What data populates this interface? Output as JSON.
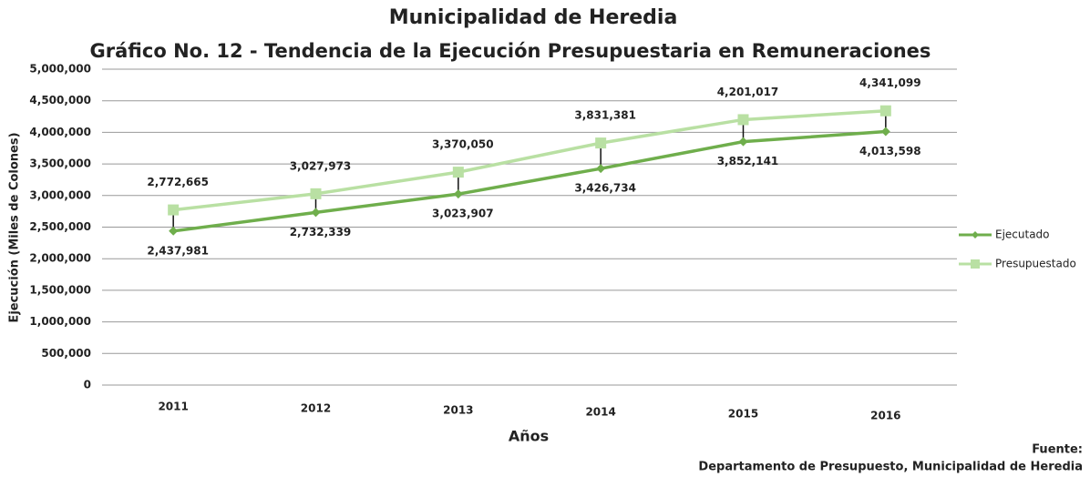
{
  "chart_data": {
    "type": "line",
    "title": "Municipalidad de Heredia",
    "subtitle": "Gráfico No. 12 - Tendencia de la Ejecución Presupuestaria en Remuneraciones",
    "x_label": "Años",
    "y_label": "Ejecución (Miles de Colones)",
    "categories": [
      "2011",
      "2012",
      "2013",
      "2014",
      "2015",
      "2016"
    ],
    "series": [
      {
        "name": "Ejecutado",
        "color": "#6fae4c",
        "values": [
          2437981,
          2732339,
          3023907,
          3426734,
          3852141,
          4013598
        ],
        "value_labels": [
          "2,437,981",
          "2,732,339",
          "3,023,907",
          "3,426,734",
          "3,852,141",
          "4,013,598"
        ]
      },
      {
        "name": "Presupuestado",
        "color": "#b9e0a3",
        "values": [
          2772665,
          3027973,
          3370050,
          3831381,
          4201017,
          4341099
        ],
        "value_labels": [
          "2,772,665",
          "3,027,973",
          "3,370,050",
          "3,831,381",
          "4,201,017",
          "4,341,099"
        ]
      }
    ],
    "ylim": [
      0,
      5000000
    ],
    "yticks": [
      0,
      {
        "value": 500000,
        "label": "500,000"
      },
      {
        "value": 1000000,
        "label": "1,000,000"
      },
      {
        "value": 1500000,
        "label": "1,500,000"
      },
      {
        "value": 2000000,
        "label": "2,000,000"
      },
      {
        "value": 2500000,
        "label": "2,500,000"
      },
      {
        "value": 3000000,
        "label": "3,000,000"
      },
      {
        "value": 3500000,
        "label": "3,500,000"
      },
      {
        "value": 4000000,
        "label": "4,000,000"
      },
      {
        "value": 4500000,
        "label": "4,500,000"
      },
      {
        "value": 5000000,
        "label": "5,000,000"
      }
    ],
    "grid": true,
    "legend": "right",
    "source_label": "Fuente:",
    "source": "Departamento de Presupuesto, Municipalidad de Heredia"
  }
}
